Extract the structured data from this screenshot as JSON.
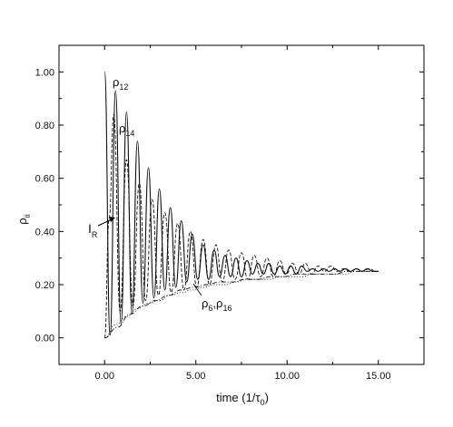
{
  "chart_data": {
    "type": "line",
    "title": "",
    "xlabel": {
      "main": "time (1/τ",
      "sub": "0",
      "close": ")"
    },
    "ylabel": {
      "main": "ρ",
      "sub": "ii"
    },
    "xlim": [
      -2.5,
      17.5
    ],
    "ylim": [
      -0.1,
      1.1
    ],
    "xticks": [
      {
        "value": 0,
        "label": "0.00"
      },
      {
        "value": 5,
        "label": "5.00"
      },
      {
        "value": 10,
        "label": "10.00"
      },
      {
        "value": 15,
        "label": "15.00"
      }
    ],
    "yticks": [
      {
        "value": 0,
        "label": "0.00"
      },
      {
        "value": 0.2,
        "label": "0.20"
      },
      {
        "value": 0.4,
        "label": "0.40"
      },
      {
        "value": 0.6,
        "label": "0.60"
      },
      {
        "value": 0.8,
        "label": "0.80"
      },
      {
        "value": 1.0,
        "label": "1.00"
      }
    ],
    "grid": false,
    "series": [
      {
        "style": "solid",
        "x": [
          0.0,
          0.3,
          0.6,
          0.9,
          1.2,
          1.5,
          1.8,
          2.1,
          2.4,
          2.7,
          3.0,
          3.3,
          3.6,
          3.9,
          4.2,
          4.5,
          4.8,
          5.1,
          5.4,
          5.7,
          6.0,
          6.3,
          6.6,
          6.9,
          7.2,
          7.5,
          7.8,
          8.1,
          8.4,
          8.7,
          9.0,
          9.3,
          9.6,
          9.9,
          10.2,
          10.5,
          10.8,
          11.1,
          11.4,
          11.7,
          12.0,
          12.3,
          12.6,
          12.9,
          13.2,
          13.5,
          13.8,
          14.1,
          14.4,
          14.7,
          15.0
        ],
        "y": [
          1.0,
          0.01,
          0.93,
          0.05,
          0.85,
          0.09,
          0.74,
          0.13,
          0.64,
          0.15,
          0.56,
          0.18,
          0.49,
          0.19,
          0.44,
          0.21,
          0.39,
          0.22,
          0.35,
          0.22,
          0.33,
          0.23,
          0.31,
          0.23,
          0.3,
          0.23,
          0.29,
          0.24,
          0.28,
          0.24,
          0.28,
          0.24,
          0.27,
          0.24,
          0.27,
          0.24,
          0.27,
          0.25,
          0.26,
          0.25,
          0.26,
          0.25,
          0.26,
          0.25,
          0.26,
          0.25,
          0.26,
          0.25,
          0.26,
          0.25,
          0.25
        ]
      },
      {
        "style": "dashed",
        "x": [
          0.0,
          0.25,
          0.5,
          0.85,
          1.2,
          1.55,
          1.9,
          2.25,
          2.6,
          2.95,
          3.3,
          3.65,
          4.0,
          4.35,
          4.7,
          5.05,
          5.4,
          5.75,
          6.1,
          6.45,
          6.8,
          7.15,
          7.5,
          7.85,
          8.2,
          8.55,
          8.9,
          9.25,
          9.6,
          9.95,
          10.3,
          10.65,
          11.0,
          11.35,
          11.7,
          12.05,
          12.4,
          12.75,
          13.1,
          13.45,
          13.8,
          14.15,
          14.5,
          14.85,
          15.0
        ],
        "y": [
          0.0,
          0.45,
          0.84,
          0.1,
          0.67,
          0.12,
          0.58,
          0.14,
          0.52,
          0.16,
          0.47,
          0.17,
          0.43,
          0.18,
          0.4,
          0.19,
          0.37,
          0.2,
          0.35,
          0.21,
          0.33,
          0.22,
          0.32,
          0.22,
          0.31,
          0.23,
          0.3,
          0.23,
          0.29,
          0.24,
          0.28,
          0.24,
          0.28,
          0.24,
          0.27,
          0.25,
          0.27,
          0.25,
          0.26,
          0.25,
          0.26,
          0.25,
          0.26,
          0.25,
          0.25
        ]
      },
      {
        "style": "dotted",
        "x": [
          0.0,
          0.6,
          1.2,
          1.8,
          2.4,
          3.0,
          3.6,
          4.2,
          4.8,
          5.4,
          6.0,
          6.6,
          7.2,
          7.8,
          8.4,
          9.0,
          9.6,
          10.2,
          10.8,
          11.4,
          12.0,
          12.6,
          13.2,
          13.8,
          14.4,
          15.0
        ],
        "y": [
          0.0,
          0.05,
          0.08,
          0.11,
          0.13,
          0.14,
          0.16,
          0.17,
          0.18,
          0.19,
          0.2,
          0.2,
          0.21,
          0.22,
          0.22,
          0.22,
          0.23,
          0.23,
          0.23,
          0.24,
          0.24,
          0.24,
          0.24,
          0.25,
          0.25,
          0.25
        ]
      },
      {
        "style": "dash-dot",
        "x": [
          0.0,
          0.7,
          1.4,
          2.1,
          2.8,
          3.5,
          4.2,
          4.9,
          5.6,
          6.3,
          7.0,
          7.7,
          8.4,
          9.1,
          9.8,
          10.5,
          11.2,
          11.9,
          12.6,
          13.3,
          14.0,
          14.7,
          15.0
        ],
        "y": [
          0.0,
          0.04,
          0.09,
          0.12,
          0.14,
          0.16,
          0.18,
          0.19,
          0.2,
          0.21,
          0.21,
          0.22,
          0.22,
          0.23,
          0.23,
          0.24,
          0.24,
          0.24,
          0.24,
          0.25,
          0.25,
          0.25,
          0.25
        ]
      }
    ],
    "annotations": [
      {
        "text": "ρ",
        "sub": "12",
        "x": 0.3,
        "y": 0.99
      },
      {
        "text": "ρ",
        "sub": "14",
        "x": 1.0,
        "y": 0.78
      },
      {
        "text": "ρ",
        "sub": "6",
        "sep": ",",
        "text2": "ρ",
        "sub2": "16",
        "x": 5.5,
        "y": 0.12
      },
      {
        "text": "I",
        "sub": "R",
        "x": -0.9,
        "y": 0.41
      }
    ]
  }
}
